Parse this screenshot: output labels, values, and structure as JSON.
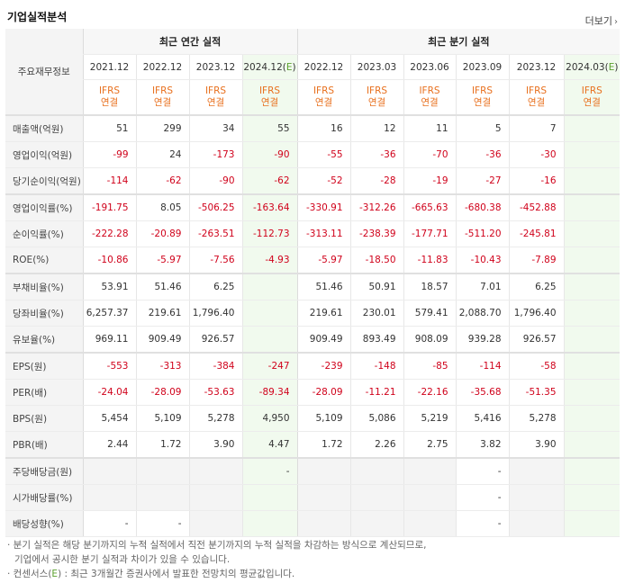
{
  "header": {
    "title": "기업실적분석",
    "more_label": "더보기",
    "more_arrow": "›"
  },
  "columns": {
    "item_header": "주요재무정보",
    "annual_title": "최근 연간 실적",
    "quarter_title": "최근 분기 실적",
    "annual_periods": [
      "2021.12",
      "2022.12",
      "2023.12",
      "2024.12(E)"
    ],
    "quarter_periods": [
      "2022.12",
      "2023.03",
      "2023.06",
      "2023.09",
      "2023.12",
      "2024.03(E)"
    ],
    "ifrs_top": "IFRS",
    "ifrs_bottom": "연결"
  },
  "rows": [
    {
      "label": "매출액(억원)",
      "values": [
        "51",
        "299",
        "34",
        "55",
        "16",
        "12",
        "11",
        "5",
        "7",
        ""
      ]
    },
    {
      "label": "영업이익(억원)",
      "values": [
        "-99",
        "24",
        "-173",
        "-90",
        "-55",
        "-36",
        "-70",
        "-36",
        "-30",
        ""
      ]
    },
    {
      "label": "당기순이익(억원)",
      "values": [
        "-114",
        "-62",
        "-90",
        "-62",
        "-52",
        "-28",
        "-19",
        "-27",
        "-16",
        ""
      ]
    },
    {
      "label": "영업이익률(%)",
      "values": [
        "-191.75",
        "8.05",
        "-506.25",
        "-163.64",
        "-330.91",
        "-312.26",
        "-665.63",
        "-680.38",
        "-452.88",
        ""
      ]
    },
    {
      "label": "순이익률(%)",
      "values": [
        "-222.28",
        "-20.89",
        "-263.51",
        "-112.73",
        "-313.11",
        "-238.39",
        "-177.71",
        "-511.20",
        "-245.81",
        ""
      ]
    },
    {
      "label": "ROE(%)",
      "values": [
        "-10.86",
        "-5.97",
        "-7.56",
        "-4.93",
        "-5.97",
        "-18.50",
        "-11.83",
        "-10.43",
        "-7.89",
        ""
      ]
    },
    {
      "label": "부채비율(%)",
      "values": [
        "53.91",
        "51.46",
        "6.25",
        "",
        "51.46",
        "50.91",
        "18.57",
        "7.01",
        "6.25",
        ""
      ]
    },
    {
      "label": "당좌비율(%)",
      "values": [
        "6,257.37",
        "219.61",
        "1,796.40",
        "",
        "219.61",
        "230.01",
        "579.41",
        "2,088.70",
        "1,796.40",
        ""
      ]
    },
    {
      "label": "유보율(%)",
      "values": [
        "969.11",
        "909.49",
        "926.57",
        "",
        "909.49",
        "893.49",
        "908.09",
        "939.28",
        "926.57",
        ""
      ]
    },
    {
      "label": "EPS(원)",
      "values": [
        "-553",
        "-313",
        "-384",
        "-247",
        "-239",
        "-148",
        "-85",
        "-114",
        "-58",
        ""
      ]
    },
    {
      "label": "PER(배)",
      "values": [
        "-24.04",
        "-28.09",
        "-53.63",
        "-89.34",
        "-28.09",
        "-11.21",
        "-22.16",
        "-35.68",
        "-51.35",
        ""
      ]
    },
    {
      "label": "BPS(원)",
      "values": [
        "5,454",
        "5,109",
        "5,278",
        "4,950",
        "5,109",
        "5,086",
        "5,219",
        "5,416",
        "5,278",
        ""
      ]
    },
    {
      "label": "PBR(배)",
      "values": [
        "2.44",
        "1.72",
        "3.90",
        "4.47",
        "1.72",
        "2.26",
        "2.75",
        "3.82",
        "3.90",
        ""
      ]
    },
    {
      "label": "주당배당금(원)",
      "values": [
        "",
        "",
        "",
        "-",
        "",
        "",
        "",
        "-",
        "",
        ""
      ]
    },
    {
      "label": "시가배당률(%)",
      "values": [
        "",
        "",
        "",
        "",
        "",
        "",
        "",
        "-",
        "",
        ""
      ]
    },
    {
      "label": "배당성향(%)",
      "values": [
        "-",
        "-",
        "",
        "",
        "",
        "",
        "",
        "-",
        "",
        ""
      ]
    }
  ],
  "notes": {
    "line1": "· 분기 실적은 해당 분기까지의 누적 실적에서 직전 분기까지의 누적 실적을 차감하는 방식으로 계산되므로,",
    "line2": "기업에서 공시한 분기 실적과 차이가 있을 수 있습니다.",
    "line3_prefix": "· 컨센서스(",
    "line3_e": "E",
    "line3_suffix": ") : 최근 3개월간 증권사에서 발표한 전망치의 평균값입니다."
  }
}
